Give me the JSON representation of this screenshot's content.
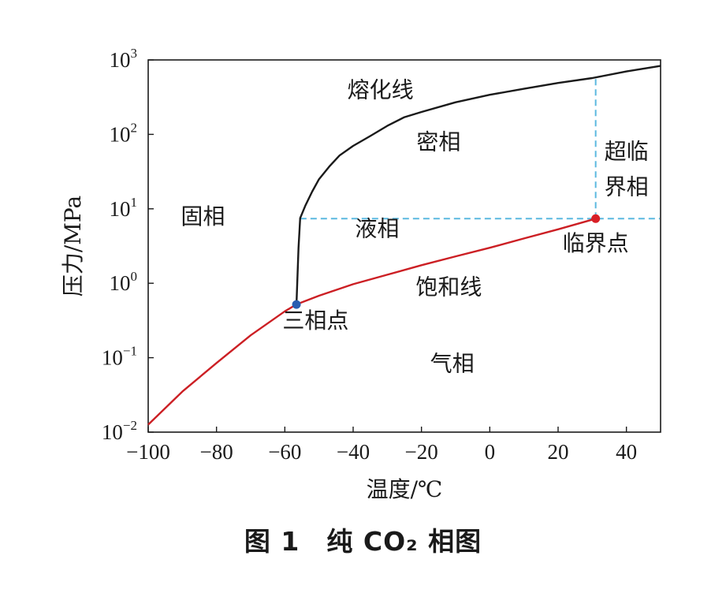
{
  "chart_data": {
    "type": "line",
    "xlabel": "温度/℃",
    "ylabel": "压力/MPa",
    "xlim": [
      -100,
      50
    ],
    "ylim": [
      0.01,
      1000
    ],
    "y_scale": "log",
    "x_ticks": [
      "−100",
      "−80",
      "−60",
      "−40",
      "−20",
      "0",
      "20",
      "40"
    ],
    "x_tick_values": [
      -100,
      -80,
      -60,
      -40,
      -20,
      0,
      20,
      40
    ],
    "y_ticks": [
      {
        "value": 0.01,
        "base": "10",
        "exp": "−2"
      },
      {
        "value": 0.1,
        "base": "10",
        "exp": "−1"
      },
      {
        "value": 1,
        "base": "10",
        "exp": "0"
      },
      {
        "value": 10,
        "base": "10",
        "exp": "1"
      },
      {
        "value": 100,
        "base": "10",
        "exp": "2"
      },
      {
        "value": 1000,
        "base": "10",
        "exp": "3"
      }
    ],
    "grid": false,
    "series": [
      {
        "name": "熔化线",
        "color": "#1a1a1a",
        "x": [
          -56.6,
          -56.0,
          -55.5,
          -54,
          -52,
          -50,
          -47,
          -44,
          -40,
          -35,
          -30,
          -25,
          -20,
          -10,
          0,
          10,
          20,
          30,
          40,
          50
        ],
        "y": [
          0.52,
          3,
          7.5,
          11,
          17,
          25,
          37,
          52,
          70,
          95,
          130,
          170,
          200,
          270,
          340,
          410,
          490,
          570,
          700,
          830
        ]
      },
      {
        "name": "饱和线",
        "color": "#cc1f24",
        "x": [
          -100,
          -90,
          -80,
          -70,
          -60,
          -56.6,
          -50,
          -40,
          -30,
          -20,
          -10,
          0,
          10,
          20,
          31
        ],
        "y": [
          0.0126,
          0.035,
          0.085,
          0.2,
          0.42,
          0.52,
          0.68,
          0.97,
          1.3,
          1.75,
          2.3,
          3.0,
          4.0,
          5.3,
          7.38
        ]
      }
    ],
    "points": [
      {
        "name": "三相点",
        "x": -56.6,
        "y": 0.518,
        "color": "#2a5db0"
      },
      {
        "name": "临界点",
        "x": 31,
        "y": 7.38,
        "color": "#d81f26"
      }
    ],
    "reference_lines": {
      "color": "#5bb8e0",
      "horizontal_y": 7.38,
      "horizontal_from_x": -55.5,
      "vertical_x": 31,
      "vertical_from_y": 7.38
    },
    "annotations": [
      {
        "text": "熔化线",
        "x": -32,
        "y": 400
      },
      {
        "text": "密相",
        "x": -15,
        "y": 80
      },
      {
        "text": "超临",
        "x": 40,
        "y": 60
      },
      {
        "text": "界相",
        "x": 40,
        "y": 20
      },
      {
        "text": "固相",
        "x": -84,
        "y": 8
      },
      {
        "text": "液相",
        "x": -33,
        "y": 5.5
      },
      {
        "text": "临界点",
        "x": 31,
        "y": 3.5
      },
      {
        "text": "饱和线",
        "x": -12,
        "y": 0.9
      },
      {
        "text": "三相点",
        "x": -51,
        "y": 0.32
      },
      {
        "text": "气相",
        "x": -11,
        "y": 0.085
      }
    ]
  },
  "caption": "图 1　纯 CO₂ 相图"
}
